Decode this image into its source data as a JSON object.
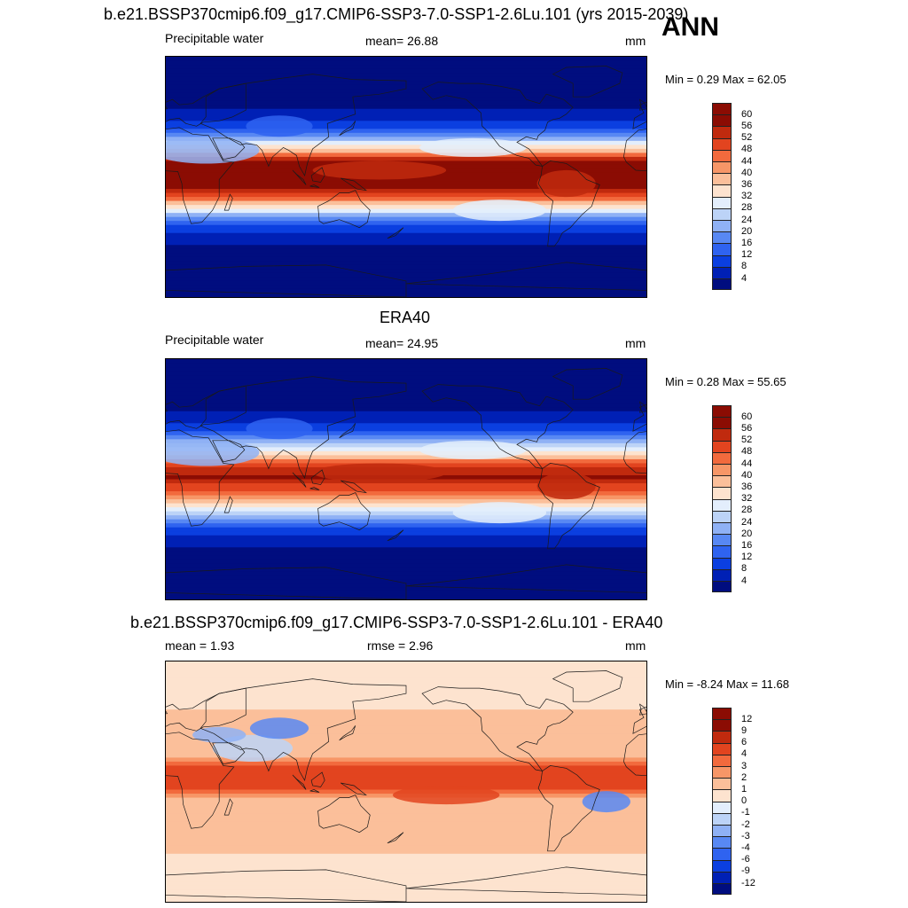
{
  "header": {
    "main_title": "b.e21.BSSP370cmip6.f09_g17.CMIP6-SSP3-7.0-SSP1-2.6Lu.101 (yrs 2015-2039)",
    "season": "ANN"
  },
  "colors": {
    "abs_scale": [
      "#000d7f",
      "#0020b5",
      "#0b3fe0",
      "#2f63f0",
      "#5888f3",
      "#8fb1f5",
      "#bcd3f7",
      "#e3eefc",
      "#fde3cf",
      "#fbbf9a",
      "#f79667",
      "#f26a3d",
      "#e2441f",
      "#c02a0e",
      "#8b0c03"
    ],
    "diff_scale": [
      "#000d7f",
      "#0020b5",
      "#0b3fe0",
      "#2f63f0",
      "#5888f3",
      "#8fb1f5",
      "#bcd3f7",
      "#e3eefc",
      "#fde3cf",
      "#fbbf9a",
      "#f79667",
      "#f26a3d",
      "#e2441f",
      "#c02a0e",
      "#8b0c03"
    ],
    "coast": "#1a1a1a"
  },
  "panels": [
    {
      "title": "",
      "left_label": "Precipitable water",
      "center_label": "mean=  26.88",
      "units": "mm",
      "minmax": "Min =   0.29 Max =  62.05",
      "levels": [
        "60",
        "56",
        "52",
        "48",
        "44",
        "40",
        "36",
        "32",
        "28",
        "24",
        "20",
        "16",
        "12",
        "8",
        "4"
      ],
      "type": "abs",
      "tropical_strength": 1.0
    },
    {
      "title": "ERA40",
      "left_label": "Precipitable water",
      "center_label": "mean=  24.95",
      "units": "mm",
      "minmax": "Min =   0.28 Max =  55.65",
      "levels": [
        "60",
        "56",
        "52",
        "48",
        "44",
        "40",
        "36",
        "32",
        "28",
        "24",
        "20",
        "16",
        "12",
        "8",
        "4"
      ],
      "type": "abs",
      "tropical_strength": 0.85
    },
    {
      "title": "b.e21.BSSP370cmip6.f09_g17.CMIP6-SSP3-7.0-SSP1-2.6Lu.101 - ERA40",
      "left_label": "mean =   1.93",
      "center_label": "rmse =   2.96",
      "units": "mm",
      "minmax": "Min =  -8.24 Max =  11.68",
      "levels": [
        "12",
        "9",
        "6",
        "4",
        "3",
        "2",
        "1",
        "0",
        "-1",
        "-2",
        "-3",
        "-4",
        "-6",
        "-9",
        "-12"
      ],
      "type": "diff",
      "tropical_strength": 1.0
    }
  ]
}
